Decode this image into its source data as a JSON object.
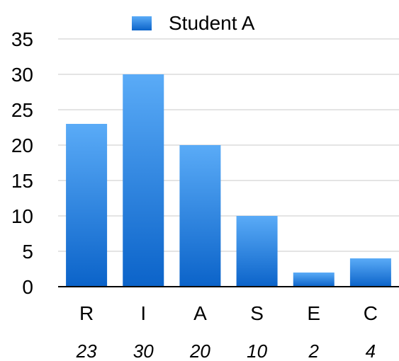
{
  "chart_data": {
    "type": "bar",
    "categories": [
      "R",
      "I",
      "A",
      "S",
      "E",
      "C"
    ],
    "series": [
      {
        "name": "Student A",
        "values": [
          23,
          30,
          20,
          10,
          2,
          4
        ]
      }
    ],
    "value_labels": [
      "23",
      "30",
      "20",
      "10",
      "2",
      "4"
    ],
    "yticks": [
      "0",
      "5",
      "10",
      "15",
      "20",
      "25",
      "30",
      "35"
    ],
    "ylim": [
      0,
      35
    ],
    "grid": true,
    "legend_position": "top-center",
    "colors": {
      "bar_top": "#5aabf7",
      "bar_bottom": "#0b63c9",
      "grid": "#c8c8c8",
      "axis": "#000000"
    }
  }
}
